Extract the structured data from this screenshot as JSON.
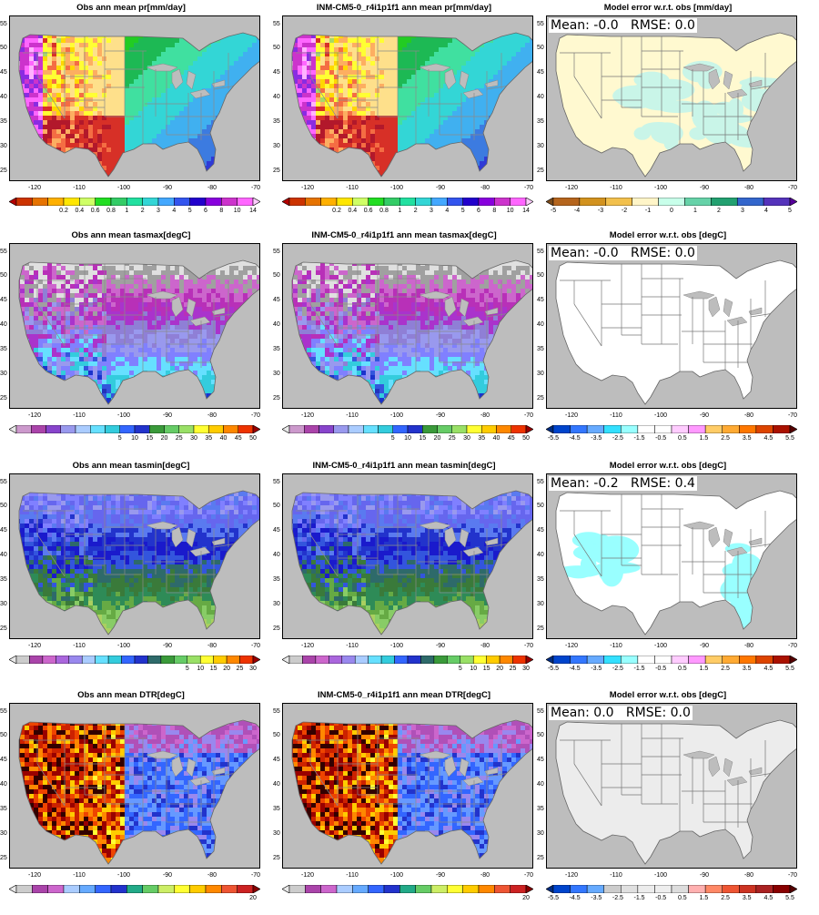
{
  "figure": {
    "x_ticks": [
      "-120",
      "-110",
      "-100",
      "-90",
      "-80",
      "-70"
    ],
    "y_ticks": [
      "55",
      "50",
      "45",
      "40",
      "35",
      "30",
      "25"
    ]
  },
  "rows": [
    {
      "obs_title": "Obs  ann mean pr[mm/day]",
      "model_title": "INM-CM5-0_r4i1p1f1 ann mean pr[mm/day]",
      "error_title": "Model error w.r.t. obs [mm/day]",
      "stat_text": "Mean: -0.0   RMSE: 0.0",
      "field_colors": [
        "#b2182b",
        "#d73027",
        "#f46d43",
        "#fdae61",
        "#fee08b",
        "#ffff33",
        "#ffd700",
        "#a6d96a",
        "#66bd63",
        "#22cc22",
        "#1db954",
        "#40e0a0",
        "#33d6d6",
        "#40b0f0",
        "#3c7be0",
        "#2f3ad6",
        "#1400b4",
        "#8a2be2",
        "#cc33cc",
        "#ff66ff",
        "#ffb3ff"
      ],
      "scale_colors": [
        "#b30000",
        "#cc3300",
        "#e67300",
        "#ffb000",
        "#ffe600",
        "#cfff66",
        "#22dd22",
        "#33cc66",
        "#22e0a0",
        "#33d6d6",
        "#44a8ff",
        "#3355ee",
        "#2200cc",
        "#8800dd",
        "#cc33cc",
        "#ff66ff",
        "#ffccff"
      ],
      "scale_labels": [
        "0.2",
        "0.4",
        "0.6",
        "0.8",
        "1",
        "2",
        "3",
        "4",
        "5",
        "6",
        "8",
        "10",
        "14"
      ],
      "error_colors": [
        "#7a4a1a",
        "#b5651d",
        "#d2921e",
        "#f2c04c",
        "#fff5c8",
        "#c8ffea",
        "#66d2a8",
        "#22a070",
        "#3366cc",
        "#5533bb",
        "#55009a"
      ],
      "error_labels": [
        "-5",
        "-4",
        "-3",
        "-2",
        "-1",
        "0",
        "1",
        "2",
        "3",
        "4",
        "5"
      ],
      "error_fill": "#fff9d0",
      "error_accent": "#c9f5e8"
    },
    {
      "obs_title": "Obs  ann mean tasmax[degC]",
      "model_title": "INM-CM5-0_r4i1p1f1 ann mean tasmax[degC]",
      "error_title": "Model error w.r.t. obs [degC]",
      "stat_text": "Mean: -0.0   RMSE: 0.0",
      "field_colors": [
        "#e0e0e0",
        "#a0a0a0",
        "#cc66cc",
        "#b830b8",
        "#aa33cc",
        "#8f7fd6",
        "#9999ee",
        "#8080ff",
        "#66e0ff",
        "#33ccdd",
        "#3355dd",
        "#1a33cc",
        "#2233bb",
        "#556b2f",
        "#4a7a3a"
      ],
      "scale_colors": [
        "#e8e8e8",
        "#cc99cc",
        "#aa44aa",
        "#8844cc",
        "#9999ee",
        "#aaccff",
        "#66e0ff",
        "#33ccdd",
        "#3366ff",
        "#2233cc",
        "#3a9a3a",
        "#66cc66",
        "#99e066",
        "#ffff33",
        "#ffcc00",
        "#ff8800",
        "#ee3300",
        "#990000"
      ],
      "scale_labels": [
        "5",
        "10",
        "15",
        "20",
        "25",
        "30",
        "35",
        "40",
        "45",
        "50"
      ],
      "error_colors": [
        "#002b80",
        "#0044cc",
        "#3377ff",
        "#66aaff",
        "#33e0ff",
        "#99ffff",
        "#ffffff",
        "#ffffff",
        "#ffccff",
        "#ff99ff",
        "#ffcc66",
        "#ffaa33",
        "#ff7700",
        "#dd4400",
        "#aa1100",
        "#550000"
      ],
      "error_labels": [
        "-5.5",
        "-4.5",
        "-3.5",
        "-2.5",
        "-1.5",
        "-0.5",
        "0.5",
        "1.5",
        "2.5",
        "3.5",
        "4.5",
        "5.5"
      ],
      "error_fill": "#ffffff",
      "error_accent": "#ffffff"
    },
    {
      "obs_title": "Obs  ann mean tasmin[degC]",
      "model_title": "INM-CM5-0_r4i1p1f1 ann mean tasmin[degC]",
      "error_title": "Model error w.r.t. obs [degC]",
      "stat_text": "Mean: -0.2   RMSE: 0.4",
      "field_colors": [
        "#9999ee",
        "#8080ff",
        "#6666ee",
        "#5a7af0",
        "#2233cc",
        "#1a1acc",
        "#3355dd",
        "#2e6a6a",
        "#3a7a3a",
        "#2e8b57",
        "#66aa44",
        "#88cc66",
        "#aad060",
        "#ccee66",
        "#ffff33"
      ],
      "scale_colors": [
        "#e8e8e8",
        "#cccccc",
        "#aa44aa",
        "#cc66cc",
        "#aa66dd",
        "#9988ee",
        "#aaccff",
        "#66e0ff",
        "#33ccdd",
        "#3366ff",
        "#2233cc",
        "#2e6a6a",
        "#3a9a3a",
        "#66cc66",
        "#99e066",
        "#ffff33",
        "#ffcc00",
        "#ff8800",
        "#ee3300",
        "#990000"
      ],
      "scale_labels": [
        "5",
        "10",
        "15",
        "20",
        "25",
        "30"
      ],
      "error_colors": [
        "#002b80",
        "#0044cc",
        "#3377ff",
        "#66aaff",
        "#33e0ff",
        "#99ffff",
        "#ffffff",
        "#ffffff",
        "#ffccff",
        "#ff99ff",
        "#ffcc66",
        "#ffaa33",
        "#ff7700",
        "#dd4400",
        "#aa1100",
        "#550000"
      ],
      "error_labels": [
        "-5.5",
        "-4.5",
        "-3.5",
        "-2.5",
        "-1.5",
        "-0.5",
        "0.5",
        "1.5",
        "2.5",
        "3.5",
        "4.5",
        "5.5"
      ],
      "error_fill": "#ffffff",
      "error_accent": "#99ffff"
    },
    {
      "obs_title": "Obs  ann mean DTR[degC]",
      "model_title": "INM-CM5-0_r4i1p1f1 ann mean DTR[degC]",
      "error_title": "Model error w.r.t. obs [degC]",
      "stat_text": "Mean: 0.0   RMSE: 0.0",
      "field_colors": [
        "#cc66cc",
        "#b050b8",
        "#9988ee",
        "#6699ff",
        "#3366ff",
        "#2233cc",
        "#33cc66",
        "#66cc33",
        "#aadd33",
        "#ffff33",
        "#ffcc00",
        "#ff8800",
        "#ee4400",
        "#cc2200",
        "#990000",
        "#330000"
      ],
      "scale_colors": [
        "#e8e8e8",
        "#cccccc",
        "#aa44aa",
        "#cc66cc",
        "#aaccff",
        "#66aaff",
        "#3366ff",
        "#2233cc",
        "#22aa88",
        "#66cc66",
        "#ccee66",
        "#ffff33",
        "#ffcc00",
        "#ff8800",
        "#ee5533",
        "#cc2222",
        "#880000"
      ],
      "scale_labels": [
        "20"
      ],
      "error_colors": [
        "#002b80",
        "#0044cc",
        "#3377ff",
        "#66aaff",
        "#cccccc",
        "#e0e0e0",
        "#ececec",
        "#eeeeee",
        "#dddddd",
        "#ffb0b0",
        "#ff8866",
        "#ee5533",
        "#cc3322",
        "#aa2222",
        "#880000",
        "#550000"
      ],
      "error_labels": [
        "-5.5",
        "-4.5",
        "-3.5",
        "-2.5",
        "-1.5",
        "-0.5",
        "0.5",
        "1.5",
        "2.5",
        "3.5",
        "4.5",
        "5.5"
      ],
      "error_fill": "#ececec",
      "error_accent": "#ececec"
    }
  ]
}
